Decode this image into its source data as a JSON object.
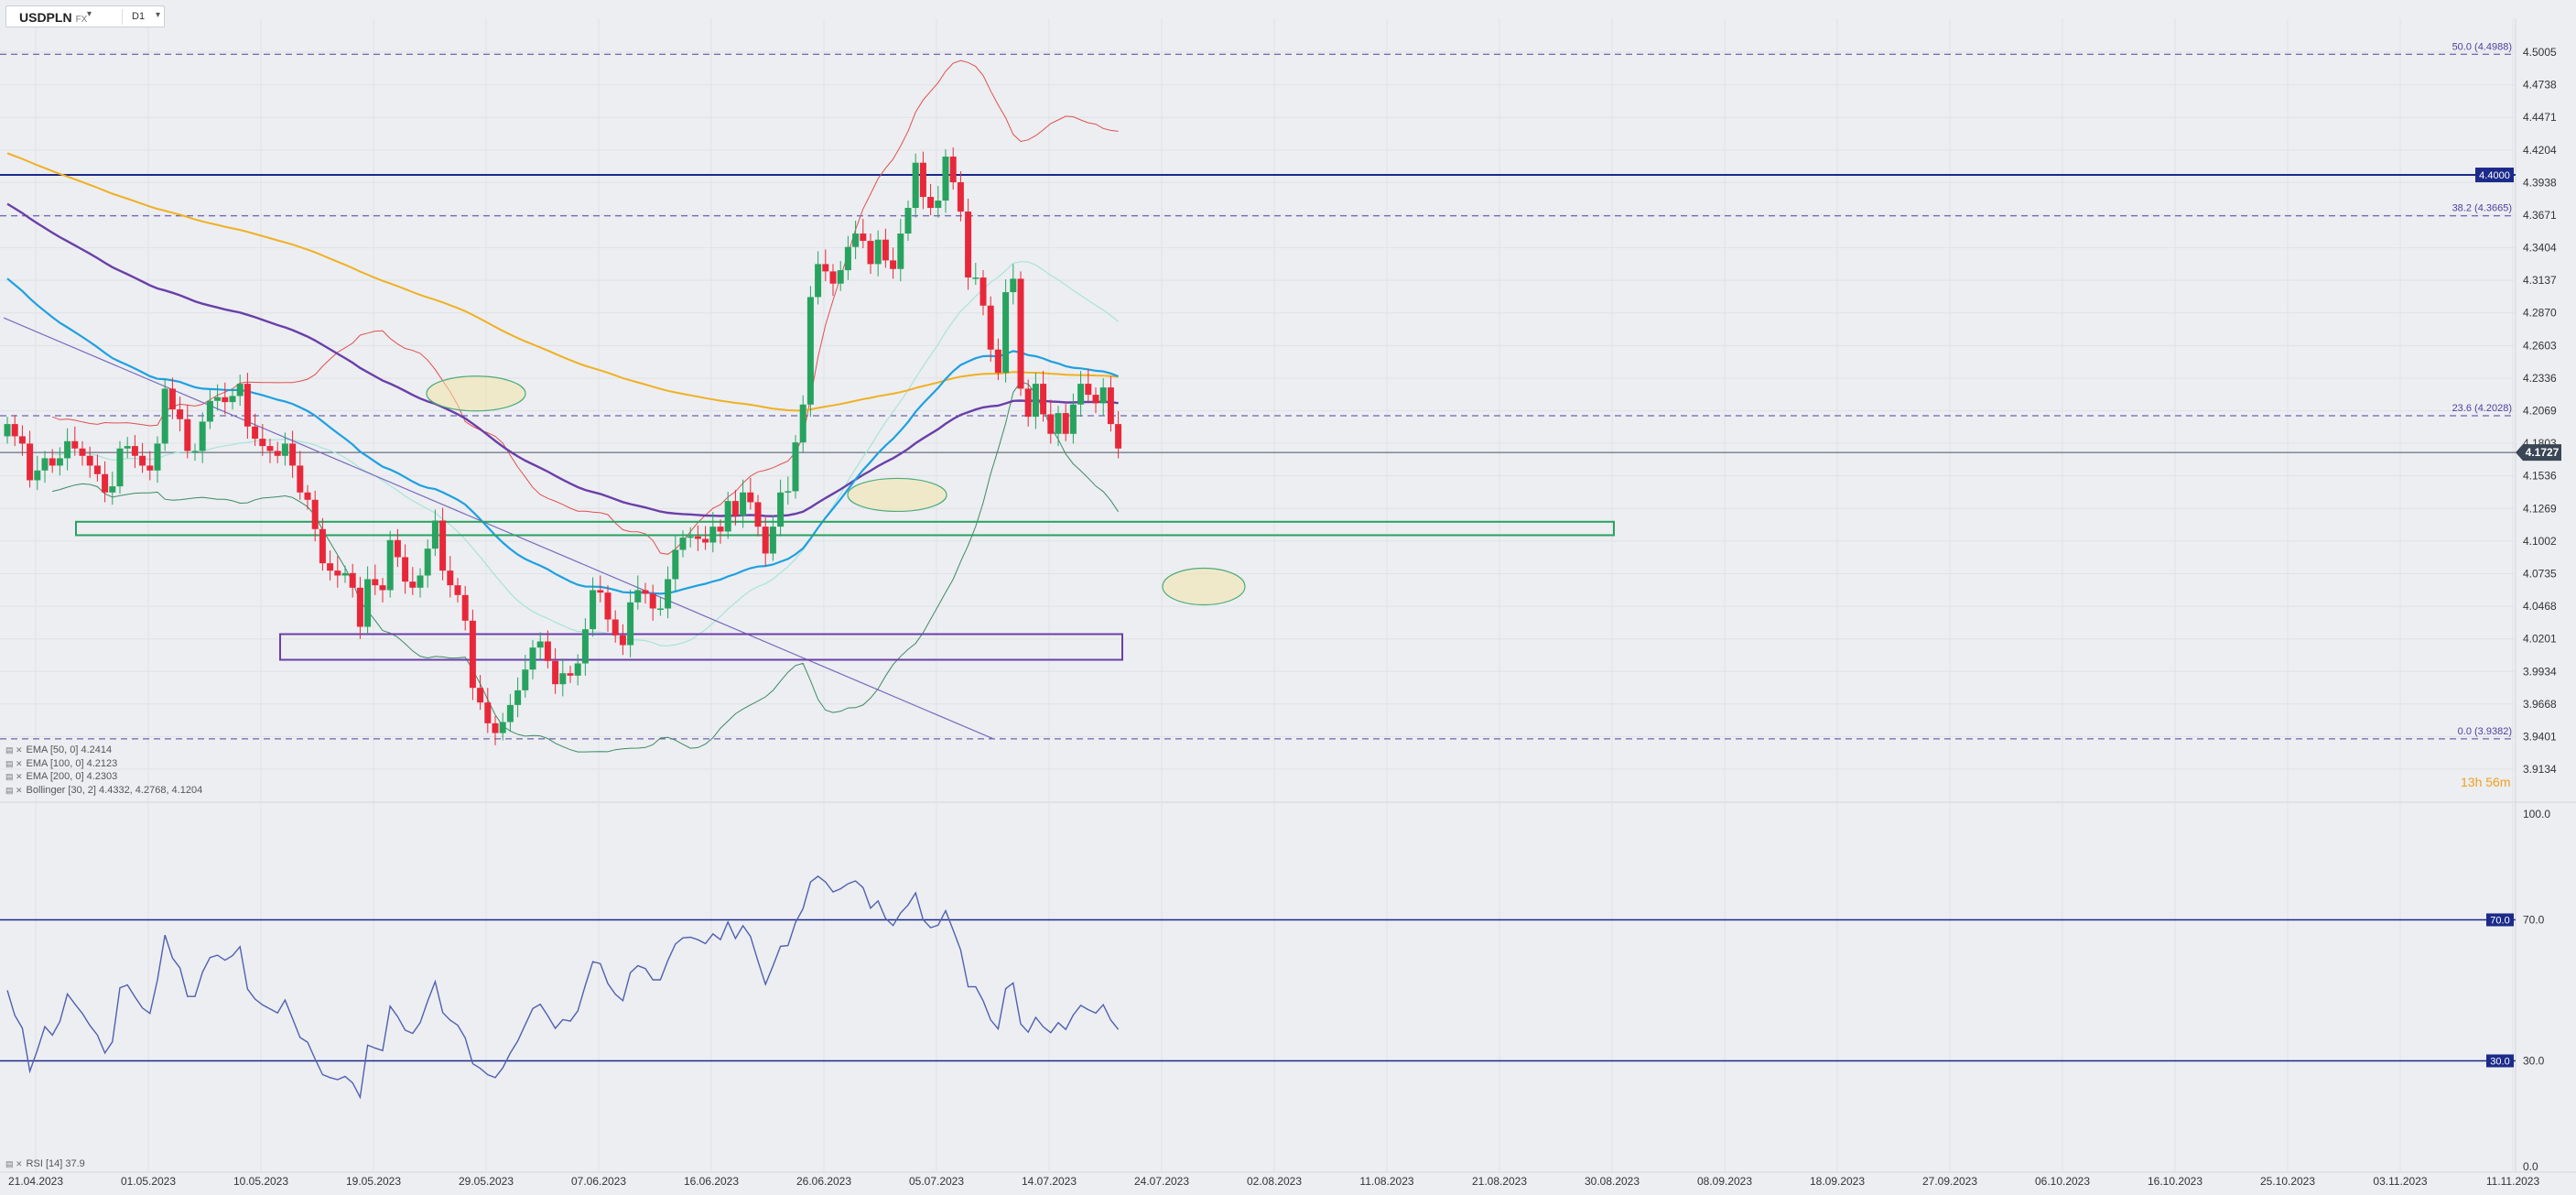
{
  "toolbar": {
    "symbol": "USDPLN",
    "exchange": "FX",
    "timeframe": "D1"
  },
  "legend": [
    {
      "label": "EMA [50, 0] 4.2414",
      "color": "#1ea0e0"
    },
    {
      "label": "EMA [100, 0] 4.2123",
      "color": "#6a3fa8"
    },
    {
      "label": "EMA [200, 0] 4.2303",
      "color": "#f0b020"
    },
    {
      "label": "Bollinger [30, 2] 4.4332, 4.2768, 4.1204",
      "color": "#d84040"
    }
  ],
  "rsi_label": "RSI [14] 37.9",
  "countdown": "13h 56m",
  "colors": {
    "up": "#27a35f",
    "down": "#e8283a",
    "ema50": "#1ea0e0",
    "ema100": "#6a3fa8",
    "ema200": "#f0b020",
    "bb_upper": "#e05050",
    "bb_lower": "#3d8a64",
    "bb_mid": "#a8e4d8",
    "hline": "#1c2a8a",
    "fib": "#5040a0",
    "rsi": "#5060b0"
  },
  "chart_data": [
    {
      "type": "candlestick",
      "title": "USDPLN FX D1",
      "x_tick_labels": [
        "21.04.2023",
        "01.05.2023",
        "10.05.2023",
        "19.05.2023",
        "29.05.2023",
        "07.06.2023",
        "16.06.2023",
        "26.06.2023",
        "05.07.2023",
        "14.07.2023",
        "24.07.2023",
        "02.08.2023",
        "11.08.2023",
        "21.08.2023",
        "30.08.2023",
        "08.09.2023",
        "18.09.2023",
        "27.09.2023",
        "06.10.2023",
        "16.10.2023",
        "25.10.2023",
        "03.11.2023",
        "11.11.2023"
      ],
      "y_tick_labels": [
        "4.5005",
        "4.4738",
        "4.4471",
        "4.4204",
        "4.3938",
        "4.3671",
        "4.3404",
        "4.3137",
        "4.2870",
        "4.2603",
        "4.2336",
        "4.2069",
        "4.1803",
        "4.1536",
        "4.1269",
        "4.1002",
        "4.0735",
        "4.0468",
        "4.0201",
        "3.9934",
        "3.9668",
        "3.9401",
        "3.9134"
      ],
      "ylim": [
        3.9134,
        4.5005
      ],
      "last_price": "4.1727",
      "closes": [
        4.196,
        4.186,
        4.18,
        4.15,
        4.158,
        4.168,
        4.162,
        4.168,
        4.182,
        4.176,
        4.17,
        4.162,
        4.155,
        4.14,
        4.145,
        4.176,
        4.178,
        4.17,
        4.162,
        4.158,
        4.18,
        4.225,
        4.208,
        4.2,
        4.174,
        4.174,
        4.198,
        4.215,
        4.218,
        4.214,
        4.219,
        4.229,
        4.194,
        4.184,
        4.178,
        4.174,
        4.17,
        4.18,
        4.162,
        4.14,
        4.134,
        4.11,
        4.082,
        4.076,
        4.072,
        4.074,
        4.062,
        4.03,
        4.069,
        4.064,
        4.06,
        4.101,
        4.087,
        4.067,
        4.062,
        4.072,
        4.094,
        4.117,
        4.076,
        4.064,
        4.056,
        4.035,
        3.98,
        3.968,
        3.951,
        3.943,
        3.952,
        3.966,
        3.978,
        3.995,
        4.013,
        4.018,
        4.002,
        3.983,
        3.992,
        3.99,
        4.0,
        4.028,
        4.06,
        4.058,
        4.036,
        4.023,
        4.015,
        4.05,
        4.06,
        4.057,
        4.045,
        4.045,
        4.069,
        4.093,
        4.103,
        4.104,
        4.102,
        4.099,
        4.112,
        4.108,
        4.133,
        4.121,
        4.14,
        4.132,
        4.112,
        4.09,
        4.112,
        4.14,
        4.141,
        4.181,
        4.212,
        4.3,
        4.327,
        4.321,
        4.311,
        4.322,
        4.341,
        4.352,
        4.346,
        4.327,
        4.347,
        4.33,
        4.323,
        4.352,
        4.373,
        4.41,
        4.382,
        4.373,
        4.379,
        4.415,
        4.394,
        4.37,
        4.316,
        4.316,
        4.293,
        4.257,
        4.238,
        4.304,
        4.315,
        4.225,
        4.202,
        4.229,
        4.204,
        4.188,
        4.205,
        4.188,
        4.212,
        4.229,
        4.22,
        4.213,
        4.226,
        4.196,
        4.176
      ],
      "rsi": {
        "ylim": [
          0,
          100
        ],
        "y_tick_labels": [
          "100.0",
          "70.0",
          "30.0",
          "0.0"
        ],
        "overbought": 70,
        "oversold": 30,
        "last": 37.9
      },
      "price_labels": [
        {
          "text": "50.0 (4.4988)",
          "value": 4.4988,
          "style": "fib"
        },
        {
          "text": "38.2 (4.3665)",
          "value": 4.3665,
          "style": "fib"
        },
        {
          "text": "23.6 (4.2028)",
          "value": 4.2028,
          "style": "fib"
        },
        {
          "text": "0.0 (3.9382)",
          "value": 3.9382,
          "style": "fib"
        },
        {
          "text": "4.4000",
          "value": 4.4,
          "style": "level"
        },
        {
          "text": "70.0",
          "value": 70,
          "style": "rsi"
        },
        {
          "text": "30.0",
          "value": 30,
          "style": "rsi"
        }
      ]
    }
  ]
}
